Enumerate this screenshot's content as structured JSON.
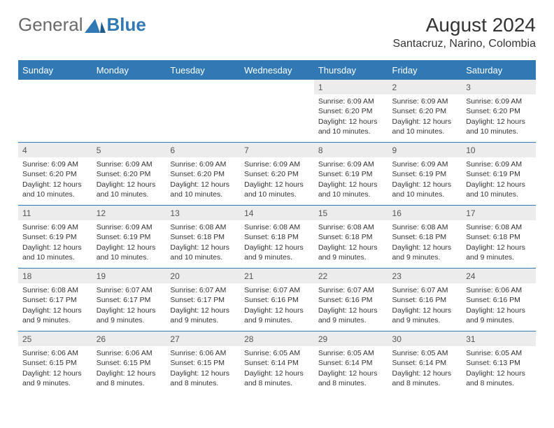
{
  "logo": {
    "general": "General",
    "blue": "Blue"
  },
  "title": "August 2024",
  "location": "Santacruz, Narino, Colombia",
  "colors": {
    "header_bg": "#3179b5",
    "header_text": "#ffffff",
    "daynum_bg": "#ececec",
    "border": "#3179b5",
    "body_text": "#333333"
  },
  "weekdays": [
    "Sunday",
    "Monday",
    "Tuesday",
    "Wednesday",
    "Thursday",
    "Friday",
    "Saturday"
  ],
  "weeks": [
    [
      {
        "empty": true
      },
      {
        "empty": true
      },
      {
        "empty": true
      },
      {
        "empty": true
      },
      {
        "day": "1",
        "sunrise": "Sunrise: 6:09 AM",
        "sunset": "Sunset: 6:20 PM",
        "daylight": "Daylight: 12 hours and 10 minutes."
      },
      {
        "day": "2",
        "sunrise": "Sunrise: 6:09 AM",
        "sunset": "Sunset: 6:20 PM",
        "daylight": "Daylight: 12 hours and 10 minutes."
      },
      {
        "day": "3",
        "sunrise": "Sunrise: 6:09 AM",
        "sunset": "Sunset: 6:20 PM",
        "daylight": "Daylight: 12 hours and 10 minutes."
      }
    ],
    [
      {
        "day": "4",
        "sunrise": "Sunrise: 6:09 AM",
        "sunset": "Sunset: 6:20 PM",
        "daylight": "Daylight: 12 hours and 10 minutes."
      },
      {
        "day": "5",
        "sunrise": "Sunrise: 6:09 AM",
        "sunset": "Sunset: 6:20 PM",
        "daylight": "Daylight: 12 hours and 10 minutes."
      },
      {
        "day": "6",
        "sunrise": "Sunrise: 6:09 AM",
        "sunset": "Sunset: 6:20 PM",
        "daylight": "Daylight: 12 hours and 10 minutes."
      },
      {
        "day": "7",
        "sunrise": "Sunrise: 6:09 AM",
        "sunset": "Sunset: 6:20 PM",
        "daylight": "Daylight: 12 hours and 10 minutes."
      },
      {
        "day": "8",
        "sunrise": "Sunrise: 6:09 AM",
        "sunset": "Sunset: 6:19 PM",
        "daylight": "Daylight: 12 hours and 10 minutes."
      },
      {
        "day": "9",
        "sunrise": "Sunrise: 6:09 AM",
        "sunset": "Sunset: 6:19 PM",
        "daylight": "Daylight: 12 hours and 10 minutes."
      },
      {
        "day": "10",
        "sunrise": "Sunrise: 6:09 AM",
        "sunset": "Sunset: 6:19 PM",
        "daylight": "Daylight: 12 hours and 10 minutes."
      }
    ],
    [
      {
        "day": "11",
        "sunrise": "Sunrise: 6:09 AM",
        "sunset": "Sunset: 6:19 PM",
        "daylight": "Daylight: 12 hours and 10 minutes."
      },
      {
        "day": "12",
        "sunrise": "Sunrise: 6:09 AM",
        "sunset": "Sunset: 6:19 PM",
        "daylight": "Daylight: 12 hours and 10 minutes."
      },
      {
        "day": "13",
        "sunrise": "Sunrise: 6:08 AM",
        "sunset": "Sunset: 6:18 PM",
        "daylight": "Daylight: 12 hours and 10 minutes."
      },
      {
        "day": "14",
        "sunrise": "Sunrise: 6:08 AM",
        "sunset": "Sunset: 6:18 PM",
        "daylight": "Daylight: 12 hours and 9 minutes."
      },
      {
        "day": "15",
        "sunrise": "Sunrise: 6:08 AM",
        "sunset": "Sunset: 6:18 PM",
        "daylight": "Daylight: 12 hours and 9 minutes."
      },
      {
        "day": "16",
        "sunrise": "Sunrise: 6:08 AM",
        "sunset": "Sunset: 6:18 PM",
        "daylight": "Daylight: 12 hours and 9 minutes."
      },
      {
        "day": "17",
        "sunrise": "Sunrise: 6:08 AM",
        "sunset": "Sunset: 6:18 PM",
        "daylight": "Daylight: 12 hours and 9 minutes."
      }
    ],
    [
      {
        "day": "18",
        "sunrise": "Sunrise: 6:08 AM",
        "sunset": "Sunset: 6:17 PM",
        "daylight": "Daylight: 12 hours and 9 minutes."
      },
      {
        "day": "19",
        "sunrise": "Sunrise: 6:07 AM",
        "sunset": "Sunset: 6:17 PM",
        "daylight": "Daylight: 12 hours and 9 minutes."
      },
      {
        "day": "20",
        "sunrise": "Sunrise: 6:07 AM",
        "sunset": "Sunset: 6:17 PM",
        "daylight": "Daylight: 12 hours and 9 minutes."
      },
      {
        "day": "21",
        "sunrise": "Sunrise: 6:07 AM",
        "sunset": "Sunset: 6:16 PM",
        "daylight": "Daylight: 12 hours and 9 minutes."
      },
      {
        "day": "22",
        "sunrise": "Sunrise: 6:07 AM",
        "sunset": "Sunset: 6:16 PM",
        "daylight": "Daylight: 12 hours and 9 minutes."
      },
      {
        "day": "23",
        "sunrise": "Sunrise: 6:07 AM",
        "sunset": "Sunset: 6:16 PM",
        "daylight": "Daylight: 12 hours and 9 minutes."
      },
      {
        "day": "24",
        "sunrise": "Sunrise: 6:06 AM",
        "sunset": "Sunset: 6:16 PM",
        "daylight": "Daylight: 12 hours and 9 minutes."
      }
    ],
    [
      {
        "day": "25",
        "sunrise": "Sunrise: 6:06 AM",
        "sunset": "Sunset: 6:15 PM",
        "daylight": "Daylight: 12 hours and 9 minutes."
      },
      {
        "day": "26",
        "sunrise": "Sunrise: 6:06 AM",
        "sunset": "Sunset: 6:15 PM",
        "daylight": "Daylight: 12 hours and 8 minutes."
      },
      {
        "day": "27",
        "sunrise": "Sunrise: 6:06 AM",
        "sunset": "Sunset: 6:15 PM",
        "daylight": "Daylight: 12 hours and 8 minutes."
      },
      {
        "day": "28",
        "sunrise": "Sunrise: 6:05 AM",
        "sunset": "Sunset: 6:14 PM",
        "daylight": "Daylight: 12 hours and 8 minutes."
      },
      {
        "day": "29",
        "sunrise": "Sunrise: 6:05 AM",
        "sunset": "Sunset: 6:14 PM",
        "daylight": "Daylight: 12 hours and 8 minutes."
      },
      {
        "day": "30",
        "sunrise": "Sunrise: 6:05 AM",
        "sunset": "Sunset: 6:14 PM",
        "daylight": "Daylight: 12 hours and 8 minutes."
      },
      {
        "day": "31",
        "sunrise": "Sunrise: 6:05 AM",
        "sunset": "Sunset: 6:13 PM",
        "daylight": "Daylight: 12 hours and 8 minutes."
      }
    ]
  ]
}
